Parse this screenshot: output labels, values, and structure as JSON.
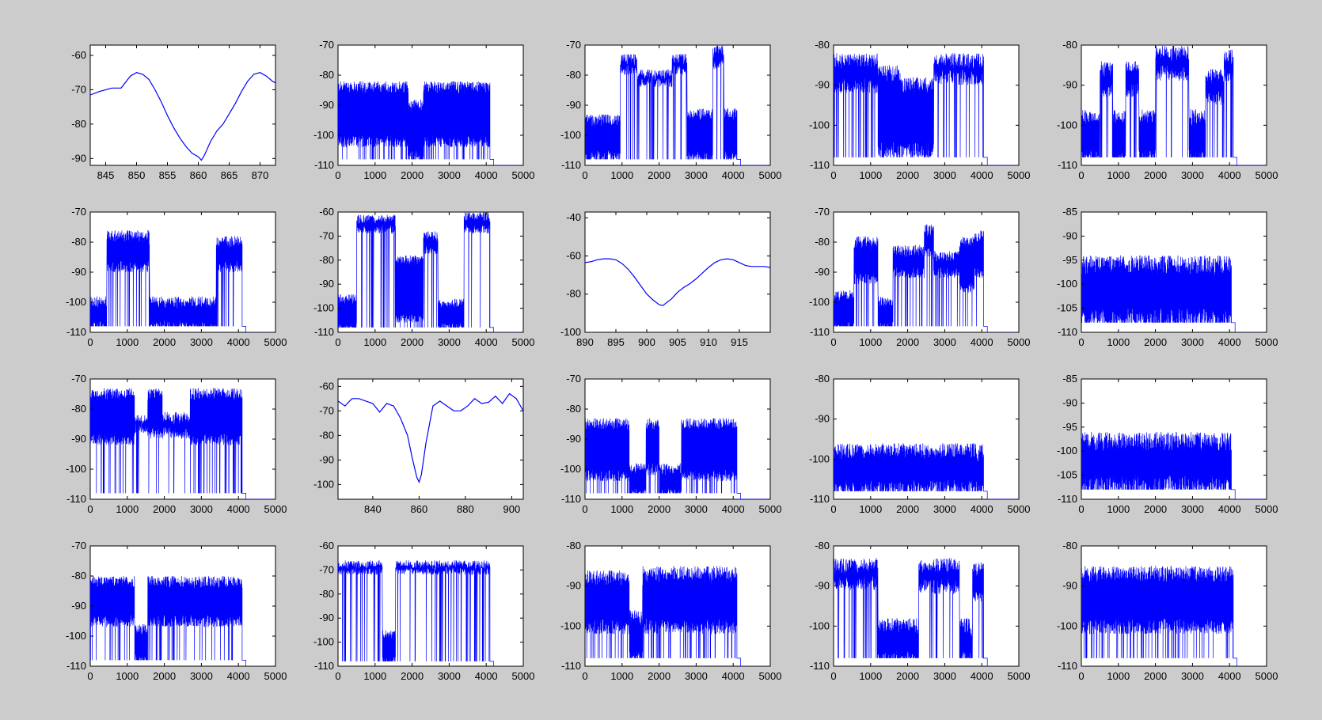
{
  "figure": {
    "background": "#cccccc",
    "axes_background": "#ffffff",
    "line_color": "#0000ff"
  },
  "chart_data": [
    {
      "type": "line",
      "kind": "smooth",
      "xticks": [
        "845",
        "850",
        "855",
        "860",
        "865",
        "870"
      ],
      "xlim": [
        842.5,
        872.5
      ],
      "yticks": [
        "-60",
        "-70",
        "-80",
        "-90"
      ],
      "ylim": [
        -92,
        -57
      ],
      "x": [
        842.5,
        844,
        846,
        847.5,
        849,
        850,
        851,
        852,
        853,
        854,
        855,
        856,
        857,
        858,
        859,
        860,
        860.5,
        861,
        862,
        863,
        864,
        865,
        866,
        867,
        868,
        869,
        870,
        871,
        872,
        872.5
      ],
      "y": [
        -71.5,
        -70.5,
        -69.5,
        -69.5,
        -66,
        -65,
        -65.5,
        -67,
        -70,
        -73.5,
        -77.5,
        -81,
        -84,
        -86.5,
        -88.5,
        -89.5,
        -90.5,
        -89,
        -85,
        -82,
        -80,
        -77,
        -74,
        -70.5,
        -67.5,
        -65.5,
        -65,
        -66,
        -67.5,
        -68
      ]
    },
    {
      "type": "line",
      "kind": "noise",
      "xticks": [
        "0",
        "1000",
        "2000",
        "3000",
        "4000",
        "5000"
      ],
      "xlim": [
        0,
        5000
      ],
      "yticks": [
        "-70",
        "-80",
        "-90",
        "-100",
        "-110"
      ],
      "ylim": [
        -110,
        -70
      ],
      "end_x": 4100,
      "floor": -108,
      "flat_start": 4200,
      "flat_value": -110,
      "segments": [
        {
          "x0": 0,
          "x1": 1900,
          "upper": -84,
          "lower": -102
        },
        {
          "x0": 1900,
          "x1": 2300,
          "upper": -90,
          "lower": -107
        },
        {
          "x0": 2300,
          "x1": 4100,
          "upper": -84,
          "lower": -102
        }
      ]
    },
    {
      "type": "line",
      "kind": "noise",
      "xticks": [
        "0",
        "1000",
        "2000",
        "3000",
        "4000",
        "5000"
      ],
      "xlim": [
        0,
        5000
      ],
      "yticks": [
        "-70",
        "-80",
        "-90",
        "-100",
        "-110"
      ],
      "ylim": [
        -110,
        -70
      ],
      "end_x": 4100,
      "floor": -108,
      "flat_start": 4200,
      "flat_value": -110,
      "segments": [
        {
          "x0": 0,
          "x1": 950,
          "upper": -95,
          "lower": -107
        },
        {
          "x0": 950,
          "x1": 1400,
          "upper": -75,
          "lower": -78
        },
        {
          "x0": 1400,
          "x1": 2350,
          "upper": -80,
          "lower": -82
        },
        {
          "x0": 2350,
          "x1": 2750,
          "upper": -75,
          "lower": -78
        },
        {
          "x0": 2750,
          "x1": 3450,
          "upper": -93,
          "lower": -107
        },
        {
          "x0": 3450,
          "x1": 3750,
          "upper": -72,
          "lower": -76
        },
        {
          "x0": 3750,
          "x1": 4100,
          "upper": -93,
          "lower": -107
        }
      ]
    },
    {
      "type": "line",
      "kind": "noise",
      "xticks": [
        "0",
        "1000",
        "2000",
        "3000",
        "4000",
        "5000"
      ],
      "xlim": [
        0,
        5000
      ],
      "yticks": [
        "-80",
        "-90",
        "-100",
        "-110"
      ],
      "ylim": [
        -110,
        -80
      ],
      "end_x": 4050,
      "floor": -108,
      "flat_start": 4150,
      "flat_value": -110,
      "segments": [
        {
          "x0": 0,
          "x1": 1200,
          "upper": -84,
          "lower": -90
        },
        {
          "x0": 1200,
          "x1": 1800,
          "upper": -87,
          "lower": -106
        },
        {
          "x0": 1800,
          "x1": 2700,
          "upper": -90,
          "lower": -106
        },
        {
          "x0": 2700,
          "x1": 4050,
          "upper": -84,
          "lower": -88
        }
      ]
    },
    {
      "type": "line",
      "kind": "noise",
      "xticks": [
        "0",
        "1000",
        "2000",
        "3000",
        "4000",
        "5000"
      ],
      "xlim": [
        0,
        5000
      ],
      "yticks": [
        "-80",
        "-90",
        "-100",
        "-110"
      ],
      "ylim": [
        -110,
        -80
      ],
      "end_x": 4100,
      "floor": -108,
      "flat_start": 4200,
      "flat_value": -110,
      "segments": [
        {
          "x0": 0,
          "x1": 500,
          "upper": -98,
          "lower": -108
        },
        {
          "x0": 500,
          "x1": 850,
          "upper": -86,
          "lower": -91
        },
        {
          "x0": 850,
          "x1": 1200,
          "upper": -98,
          "lower": -108
        },
        {
          "x0": 1200,
          "x1": 1550,
          "upper": -86,
          "lower": -91
        },
        {
          "x0": 1550,
          "x1": 2000,
          "upper": -98,
          "lower": -108
        },
        {
          "x0": 2000,
          "x1": 2900,
          "upper": -82,
          "lower": -87
        },
        {
          "x0": 2900,
          "x1": 3350,
          "upper": -98,
          "lower": -108
        },
        {
          "x0": 3350,
          "x1": 3850,
          "upper": -88,
          "lower": -93
        },
        {
          "x0": 3850,
          "x1": 4100,
          "upper": -83,
          "lower": -87
        }
      ]
    },
    {
      "type": "line",
      "kind": "noise",
      "xticks": [
        "0",
        "1000",
        "2000",
        "3000",
        "4000",
        "5000"
      ],
      "xlim": [
        0,
        5000
      ],
      "yticks": [
        "-70",
        "-80",
        "-90",
        "-100",
        "-110"
      ],
      "ylim": [
        -110,
        -70
      ],
      "end_x": 4100,
      "floor": -108,
      "flat_start": 4200,
      "flat_value": -110,
      "segments": [
        {
          "x0": 0,
          "x1": 450,
          "upper": -100,
          "lower": -108
        },
        {
          "x0": 450,
          "x1": 1600,
          "upper": -78,
          "lower": -88
        },
        {
          "x0": 1600,
          "x1": 3400,
          "upper": -100,
          "lower": -108
        },
        {
          "x0": 3400,
          "x1": 4100,
          "upper": -80,
          "lower": -88
        }
      ]
    },
    {
      "type": "line",
      "kind": "noise",
      "xticks": [
        "0",
        "1000",
        "2000",
        "3000",
        "4000",
        "5000"
      ],
      "xlim": [
        0,
        5000
      ],
      "yticks": [
        "-60",
        "-70",
        "-80",
        "-90",
        "-100",
        "-110"
      ],
      "ylim": [
        -110,
        -60
      ],
      "end_x": 4100,
      "floor": -108,
      "flat_start": 4200,
      "flat_value": -110,
      "segments": [
        {
          "x0": 0,
          "x1": 500,
          "upper": -96,
          "lower": -108
        },
        {
          "x0": 500,
          "x1": 1550,
          "upper": -63,
          "lower": -67
        },
        {
          "x0": 1550,
          "x1": 2300,
          "upper": -80,
          "lower": -104
        },
        {
          "x0": 2300,
          "x1": 2700,
          "upper": -70,
          "lower": -76
        },
        {
          "x0": 2700,
          "x1": 3400,
          "upper": -98,
          "lower": -108
        },
        {
          "x0": 3400,
          "x1": 4100,
          "upper": -62,
          "lower": -67
        }
      ]
    },
    {
      "type": "line",
      "kind": "smooth",
      "xticks": [
        "890",
        "895",
        "900",
        "905",
        "910",
        "915"
      ],
      "xlim": [
        890,
        920
      ],
      "yticks": [
        "-40",
        "-60",
        "-80",
        "-100"
      ],
      "ylim": [
        -100,
        -37
      ],
      "x": [
        890,
        891,
        892,
        893,
        894,
        895,
        896,
        897,
        898,
        899,
        900,
        901,
        902,
        902.6,
        903,
        904,
        905,
        906,
        907,
        908,
        909,
        910,
        911,
        912,
        913,
        914,
        915,
        916,
        917,
        918,
        919,
        920
      ],
      "y": [
        -63.5,
        -63,
        -62,
        -61.5,
        -61.5,
        -62,
        -64,
        -67,
        -71,
        -75.5,
        -80,
        -83,
        -85.5,
        -86,
        -85,
        -82.5,
        -79,
        -76.5,
        -74.5,
        -72,
        -69,
        -66,
        -63.5,
        -62,
        -61.5,
        -62,
        -63.5,
        -65,
        -65.5,
        -65.5,
        -65.5,
        -66
      ]
    },
    {
      "type": "line",
      "kind": "noise",
      "xticks": [
        "0",
        "1000",
        "2000",
        "3000",
        "4000",
        "5000"
      ],
      "xlim": [
        0,
        5000
      ],
      "yticks": [
        "-70",
        "-80",
        "-90",
        "-100",
        "-110"
      ],
      "ylim": [
        -110,
        -70
      ],
      "end_x": 4050,
      "floor": -108,
      "flat_start": 4150,
      "flat_value": -110,
      "segments": [
        {
          "x0": 0,
          "x1": 550,
          "upper": -98,
          "lower": -108
        },
        {
          "x0": 550,
          "x1": 1200,
          "upper": -80,
          "lower": -92
        },
        {
          "x0": 1200,
          "x1": 1600,
          "upper": -100,
          "lower": -108
        },
        {
          "x0": 1600,
          "x1": 2450,
          "upper": -83,
          "lower": -90
        },
        {
          "x0": 2450,
          "x1": 2700,
          "upper": -76,
          "lower": -84
        },
        {
          "x0": 2700,
          "x1": 3400,
          "upper": -85,
          "lower": -90
        },
        {
          "x0": 3400,
          "x1": 3800,
          "upper": -80,
          "lower": -95
        },
        {
          "x0": 3800,
          "x1": 4050,
          "upper": -78,
          "lower": -90
        }
      ]
    },
    {
      "type": "line",
      "kind": "noise",
      "xticks": [
        "0",
        "1000",
        "2000",
        "3000",
        "4000",
        "5000"
      ],
      "xlim": [
        0,
        5000
      ],
      "yticks": [
        "-85",
        "-90",
        "-95",
        "-100",
        "-105",
        "-110"
      ],
      "ylim": [
        -110,
        -85
      ],
      "end_x": 4050,
      "floor": -108,
      "flat_start": 4150,
      "flat_value": -110,
      "segments": [
        {
          "x0": 0,
          "x1": 4050,
          "upper": -96,
          "lower": -107
        }
      ]
    },
    {
      "type": "line",
      "kind": "noise",
      "xticks": [
        "0",
        "1000",
        "2000",
        "3000",
        "4000",
        "5000"
      ],
      "xlim": [
        0,
        5000
      ],
      "yticks": [
        "-70",
        "-80",
        "-90",
        "-100",
        "-110"
      ],
      "ylim": [
        -110,
        -70
      ],
      "end_x": 4100,
      "floor": -108,
      "flat_start": 4200,
      "flat_value": -110,
      "segments": [
        {
          "x0": 0,
          "x1": 1200,
          "upper": -75,
          "lower": -90
        },
        {
          "x0": 1200,
          "x1": 1550,
          "upper": -84,
          "lower": -86
        },
        {
          "x0": 1550,
          "x1": 1950,
          "upper": -75,
          "lower": -88
        },
        {
          "x0": 1950,
          "x1": 2700,
          "upper": -83,
          "lower": -88
        },
        {
          "x0": 2700,
          "x1": 4100,
          "upper": -75,
          "lower": -90
        }
      ]
    },
    {
      "type": "line",
      "kind": "smooth",
      "xticks": [
        "840",
        "860",
        "880",
        "900"
      ],
      "xlim": [
        825,
        905
      ],
      "yticks": [
        "-60",
        "-70",
        "-80",
        "-90",
        "-100"
      ],
      "ylim": [
        -106,
        -57
      ],
      "x": [
        825,
        828,
        831,
        834,
        837,
        840,
        843,
        846,
        849,
        852,
        855,
        857,
        859,
        860,
        861,
        863,
        866,
        869,
        872,
        875,
        878,
        881,
        884,
        887,
        890,
        893,
        896,
        899,
        902,
        905
      ],
      "y": [
        -66,
        -68,
        -65,
        -65,
        -66,
        -67,
        -70.5,
        -67,
        -68,
        -73,
        -80,
        -89,
        -97,
        -99,
        -96,
        -83,
        -68,
        -66,
        -68,
        -70,
        -70,
        -68,
        -65,
        -67,
        -66.5,
        -64,
        -67,
        -63,
        -65,
        -70
      ]
    },
    {
      "type": "line",
      "kind": "noise",
      "xticks": [
        "0",
        "1000",
        "2000",
        "3000",
        "4000",
        "5000"
      ],
      "xlim": [
        0,
        5000
      ],
      "yticks": [
        "-70",
        "-80",
        "-90",
        "-100",
        "-110"
      ],
      "ylim": [
        -110,
        -70
      ],
      "end_x": 4100,
      "floor": -108,
      "flat_start": 4200,
      "flat_value": -110,
      "segments": [
        {
          "x0": 0,
          "x1": 1200,
          "upper": -85,
          "lower": -102
        },
        {
          "x0": 1200,
          "x1": 1650,
          "upper": -100,
          "lower": -108
        },
        {
          "x0": 1650,
          "x1": 2000,
          "upper": -85,
          "lower": -100
        },
        {
          "x0": 2000,
          "x1": 2600,
          "upper": -100,
          "lower": -108
        },
        {
          "x0": 2600,
          "x1": 4100,
          "upper": -85,
          "lower": -102
        }
      ]
    },
    {
      "type": "line",
      "kind": "noise",
      "xticks": [
        "0",
        "1000",
        "2000",
        "3000",
        "4000",
        "5000"
      ],
      "xlim": [
        0,
        5000
      ],
      "yticks": [
        "-80",
        "-90",
        "-100",
        "-110"
      ],
      "ylim": [
        -110,
        -80
      ],
      "end_x": 4050,
      "floor": -108,
      "flat_start": 4150,
      "flat_value": -110,
      "segments": [
        {
          "x0": 0,
          "x1": 4050,
          "upper": -98,
          "lower": -107
        }
      ]
    },
    {
      "type": "line",
      "kind": "noise",
      "xticks": [
        "0",
        "1000",
        "2000",
        "3000",
        "4000",
        "5000"
      ],
      "xlim": [
        0,
        5000
      ],
      "yticks": [
        "-85",
        "-90",
        "-95",
        "-100",
        "-105",
        "-110"
      ],
      "ylim": [
        -110,
        -85
      ],
      "end_x": 4050,
      "floor": -108,
      "flat_start": 4150,
      "flat_value": -110,
      "segments": [
        {
          "x0": 0,
          "x1": 4050,
          "upper": -98,
          "lower": -107
        }
      ]
    },
    {
      "type": "line",
      "kind": "noise",
      "xticks": [
        "0",
        "1000",
        "2000",
        "3000",
        "4000",
        "5000"
      ],
      "xlim": [
        0,
        5000
      ],
      "yticks": [
        "-70",
        "-80",
        "-90",
        "-100",
        "-110"
      ],
      "ylim": [
        -110,
        -70
      ],
      "end_x": 4100,
      "floor": -108,
      "flat_start": 4200,
      "flat_value": -110,
      "segments": [
        {
          "x0": 0,
          "x1": 1200,
          "upper": -82,
          "lower": -95
        },
        {
          "x0": 1200,
          "x1": 1550,
          "upper": -98,
          "lower": -108
        },
        {
          "x0": 1550,
          "x1": 4100,
          "upper": -82,
          "lower": -95
        }
      ]
    },
    {
      "type": "line",
      "kind": "noise",
      "xticks": [
        "0",
        "1000",
        "2000",
        "3000",
        "4000",
        "5000"
      ],
      "xlim": [
        0,
        5000
      ],
      "yticks": [
        "-60",
        "-70",
        "-80",
        "-90",
        "-100",
        "-110"
      ],
      "ylim": [
        -110,
        -60
      ],
      "end_x": 4100,
      "floor": -108,
      "flat_start": 4200,
      "flat_value": -110,
      "segments": [
        {
          "x0": 0,
          "x1": 1200,
          "upper": -68,
          "lower": -70
        },
        {
          "x0": 1200,
          "x1": 1550,
          "upper": -97,
          "lower": -108
        },
        {
          "x0": 1550,
          "x1": 4100,
          "upper": -68,
          "lower": -70
        }
      ]
    },
    {
      "type": "line",
      "kind": "noise",
      "xticks": [
        "0",
        "1000",
        "2000",
        "3000",
        "4000",
        "5000"
      ],
      "xlim": [
        0,
        5000
      ],
      "yticks": [
        "-80",
        "-90",
        "-100",
        "-110"
      ],
      "ylim": [
        -110,
        -80
      ],
      "end_x": 4100,
      "floor": -108,
      "flat_start": 4200,
      "flat_value": -110,
      "segments": [
        {
          "x0": 0,
          "x1": 1200,
          "upper": -88,
          "lower": -100
        },
        {
          "x0": 1200,
          "x1": 1550,
          "upper": -98,
          "lower": -108
        },
        {
          "x0": 1550,
          "x1": 4100,
          "upper": -87,
          "lower": -100
        }
      ]
    },
    {
      "type": "line",
      "kind": "noise",
      "xticks": [
        "0",
        "1000",
        "2000",
        "3000",
        "4000",
        "5000"
      ],
      "xlim": [
        0,
        5000
      ],
      "yticks": [
        "-80",
        "-90",
        "-100",
        "-110"
      ],
      "ylim": [
        -110,
        -80
      ],
      "end_x": 4050,
      "floor": -108,
      "flat_start": 4150,
      "flat_value": -110,
      "segments": [
        {
          "x0": 0,
          "x1": 1200,
          "upper": -85,
          "lower": -89
        },
        {
          "x0": 1200,
          "x1": 2300,
          "upper": -100,
          "lower": -108
        },
        {
          "x0": 2300,
          "x1": 3400,
          "upper": -85,
          "lower": -90
        },
        {
          "x0": 3400,
          "x1": 3750,
          "upper": -100,
          "lower": -108
        },
        {
          "x0": 3750,
          "x1": 4050,
          "upper": -86,
          "lower": -92
        }
      ]
    },
    {
      "type": "line",
      "kind": "noise",
      "xticks": [
        "0",
        "1000",
        "2000",
        "3000",
        "4000",
        "5000"
      ],
      "xlim": [
        0,
        5000
      ],
      "yticks": [
        "-80",
        "-90",
        "-100",
        "-110"
      ],
      "ylim": [
        -110,
        -80
      ],
      "end_x": 4100,
      "floor": -108,
      "flat_start": 4200,
      "flat_value": -110,
      "segments": [
        {
          "x0": 0,
          "x1": 4100,
          "upper": -87,
          "lower": -100
        }
      ]
    }
  ]
}
